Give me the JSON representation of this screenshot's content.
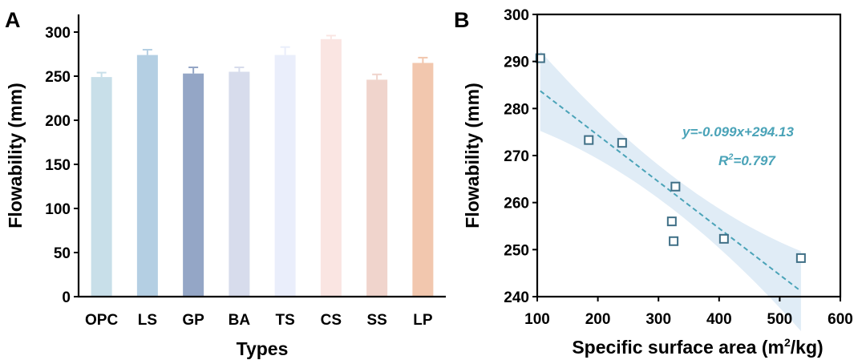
{
  "chart_data": [
    {
      "type": "bar",
      "panel_label": "A",
      "categories": [
        "OPC",
        "LS",
        "GP",
        "BA",
        "TS",
        "CS",
        "SS",
        "LP"
      ],
      "values": [
        249,
        274,
        253,
        255,
        274,
        292,
        246,
        265
      ],
      "errors": [
        5,
        6,
        7,
        5,
        9,
        4,
        6,
        6
      ],
      "colors": [
        "#c8dfe9",
        "#b4cfe3",
        "#94a6c6",
        "#d7dcec",
        "#eaeefb",
        "#fae5e2",
        "#f0d4cc",
        "#f2c7ae"
      ],
      "xlabel": "Types",
      "ylabel": "Flowability (mm)",
      "ylim": [
        0,
        320
      ],
      "yticks": [
        0,
        50,
        100,
        150,
        200,
        250,
        300
      ]
    },
    {
      "type": "scatter",
      "panel_label": "B",
      "x": [
        105,
        185,
        240,
        322,
        325,
        328,
        408,
        535
      ],
      "y": [
        290.7,
        273.3,
        272.7,
        256.0,
        251.8,
        263.4,
        252.3,
        248.2
      ],
      "fit": {
        "slope": -0.099,
        "intercept": 294.13,
        "x_range": [
          105,
          535
        ],
        "confidence_halfwidth_end": 8.5,
        "confidence_halfwidth_mid": 3.5,
        "color": "#4aa3b8"
      },
      "marker_color": "#3f6f86",
      "band_color": "#dbe9f5",
      "equation_text": "y=-0.099x+294.13",
      "r2_label": "R",
      "r2_sup": "2",
      "r2_value": "=0.797",
      "xlabel_main": "Specific surface area (m",
      "xlabel_sup": "2",
      "xlabel_end": "/kg)",
      "ylabel": "Flowability (mm)",
      "xlim": [
        100,
        600
      ],
      "ylim": [
        240,
        300
      ],
      "xticks": [
        100,
        200,
        300,
        400,
        500,
        600
      ],
      "yticks": [
        240,
        250,
        260,
        270,
        280,
        290,
        300
      ]
    }
  ]
}
